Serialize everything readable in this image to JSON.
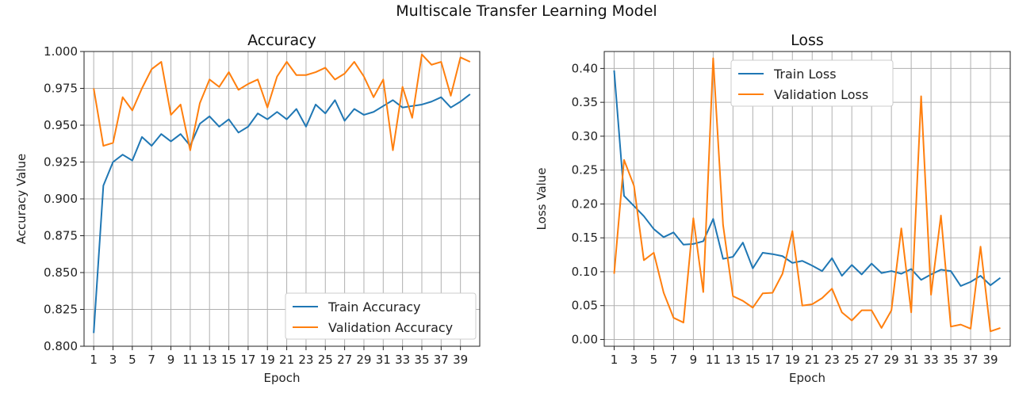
{
  "figure_title": "Multiscale Transfer Learning Model",
  "colors": {
    "train": "#1f77b4",
    "validation": "#ff7f0e"
  },
  "chart_data": [
    {
      "type": "line",
      "title": "Accuracy",
      "xlabel": "Epoch",
      "ylabel": "Accuracy Value",
      "xlim": [
        0,
        41
      ],
      "ylim": [
        0.8,
        1.0
      ],
      "xticks": [
        1,
        3,
        5,
        7,
        9,
        11,
        13,
        15,
        17,
        19,
        21,
        23,
        25,
        27,
        29,
        31,
        33,
        35,
        37,
        39
      ],
      "yticks": [
        0.8,
        0.825,
        0.85,
        0.875,
        0.9,
        0.925,
        0.95,
        0.975,
        1.0
      ],
      "ytick_labels": [
        "0.800",
        "0.825",
        "0.850",
        "0.875",
        "0.900",
        "0.925",
        "0.950",
        "0.975",
        "1.000"
      ],
      "grid": true,
      "legend_position": "lower-right",
      "x": [
        1,
        2,
        3,
        4,
        5,
        6,
        7,
        8,
        9,
        10,
        11,
        12,
        13,
        14,
        15,
        16,
        17,
        18,
        19,
        20,
        21,
        22,
        23,
        24,
        25,
        26,
        27,
        28,
        29,
        30,
        31,
        32,
        33,
        34,
        35,
        36,
        37,
        38,
        39,
        40
      ],
      "series": [
        {
          "name": "Train Accuracy",
          "color": "#1f77b4",
          "values": [
            0.809,
            0.909,
            0.925,
            0.93,
            0.926,
            0.942,
            0.936,
            0.944,
            0.939,
            0.944,
            0.936,
            0.951,
            0.956,
            0.949,
            0.954,
            0.945,
            0.949,
            0.958,
            0.954,
            0.959,
            0.954,
            0.961,
            0.949,
            0.964,
            0.958,
            0.967,
            0.953,
            0.961,
            0.957,
            0.959,
            0.963,
            0.967,
            0.962,
            0.963,
            0.964,
            0.966,
            0.969,
            0.962,
            0.966,
            0.971
          ]
        },
        {
          "name": "Validation Accuracy",
          "color": "#ff7f0e",
          "values": [
            0.975,
            0.936,
            0.938,
            0.969,
            0.96,
            0.975,
            0.988,
            0.993,
            0.957,
            0.964,
            0.933,
            0.965,
            0.981,
            0.976,
            0.986,
            0.974,
            0.978,
            0.981,
            0.962,
            0.983,
            0.993,
            0.984,
            0.984,
            0.986,
            0.989,
            0.981,
            0.985,
            0.993,
            0.983,
            0.969,
            0.981,
            0.933,
            0.976,
            0.955,
            0.998,
            0.991,
            0.993,
            0.97,
            0.996,
            0.993
          ]
        }
      ]
    },
    {
      "type": "line",
      "title": "Loss",
      "xlabel": "Epoch",
      "ylabel": "Loss Value",
      "xlim": [
        0,
        41
      ],
      "ylim": [
        -0.01,
        0.425
      ],
      "xticks": [
        1,
        3,
        5,
        7,
        9,
        11,
        13,
        15,
        17,
        19,
        21,
        23,
        25,
        27,
        29,
        31,
        33,
        35,
        37,
        39
      ],
      "yticks": [
        0.0,
        0.05,
        0.1,
        0.15,
        0.2,
        0.25,
        0.3,
        0.35,
        0.4
      ],
      "ytick_labels": [
        "0.00",
        "0.05",
        "0.10",
        "0.15",
        "0.20",
        "0.25",
        "0.30",
        "0.35",
        "0.40"
      ],
      "grid": true,
      "legend_position": "upper-left",
      "x": [
        1,
        2,
        3,
        4,
        5,
        6,
        7,
        8,
        9,
        10,
        11,
        12,
        13,
        14,
        15,
        16,
        17,
        18,
        19,
        20,
        21,
        22,
        23,
        24,
        25,
        26,
        27,
        28,
        29,
        30,
        31,
        32,
        33,
        34,
        35,
        36,
        37,
        38,
        39,
        40
      ],
      "series": [
        {
          "name": "Train Loss",
          "color": "#1f77b4",
          "values": [
            0.397,
            0.212,
            0.197,
            0.182,
            0.163,
            0.151,
            0.158,
            0.14,
            0.141,
            0.145,
            0.178,
            0.119,
            0.122,
            0.143,
            0.105,
            0.128,
            0.126,
            0.123,
            0.113,
            0.116,
            0.109,
            0.101,
            0.12,
            0.094,
            0.11,
            0.096,
            0.112,
            0.098,
            0.101,
            0.097,
            0.104,
            0.088,
            0.096,
            0.103,
            0.101,
            0.079,
            0.085,
            0.094,
            0.08,
            0.091
          ]
        },
        {
          "name": "Validation Loss",
          "color": "#ff7f0e",
          "values": [
            0.097,
            0.265,
            0.227,
            0.117,
            0.128,
            0.069,
            0.032,
            0.025,
            0.179,
            0.07,
            0.415,
            0.169,
            0.064,
            0.057,
            0.047,
            0.068,
            0.069,
            0.097,
            0.16,
            0.05,
            0.052,
            0.061,
            0.075,
            0.04,
            0.028,
            0.043,
            0.043,
            0.017,
            0.043,
            0.164,
            0.04,
            0.359,
            0.066,
            0.183,
            0.019,
            0.022,
            0.016,
            0.137,
            0.012,
            0.017
          ]
        }
      ]
    }
  ]
}
